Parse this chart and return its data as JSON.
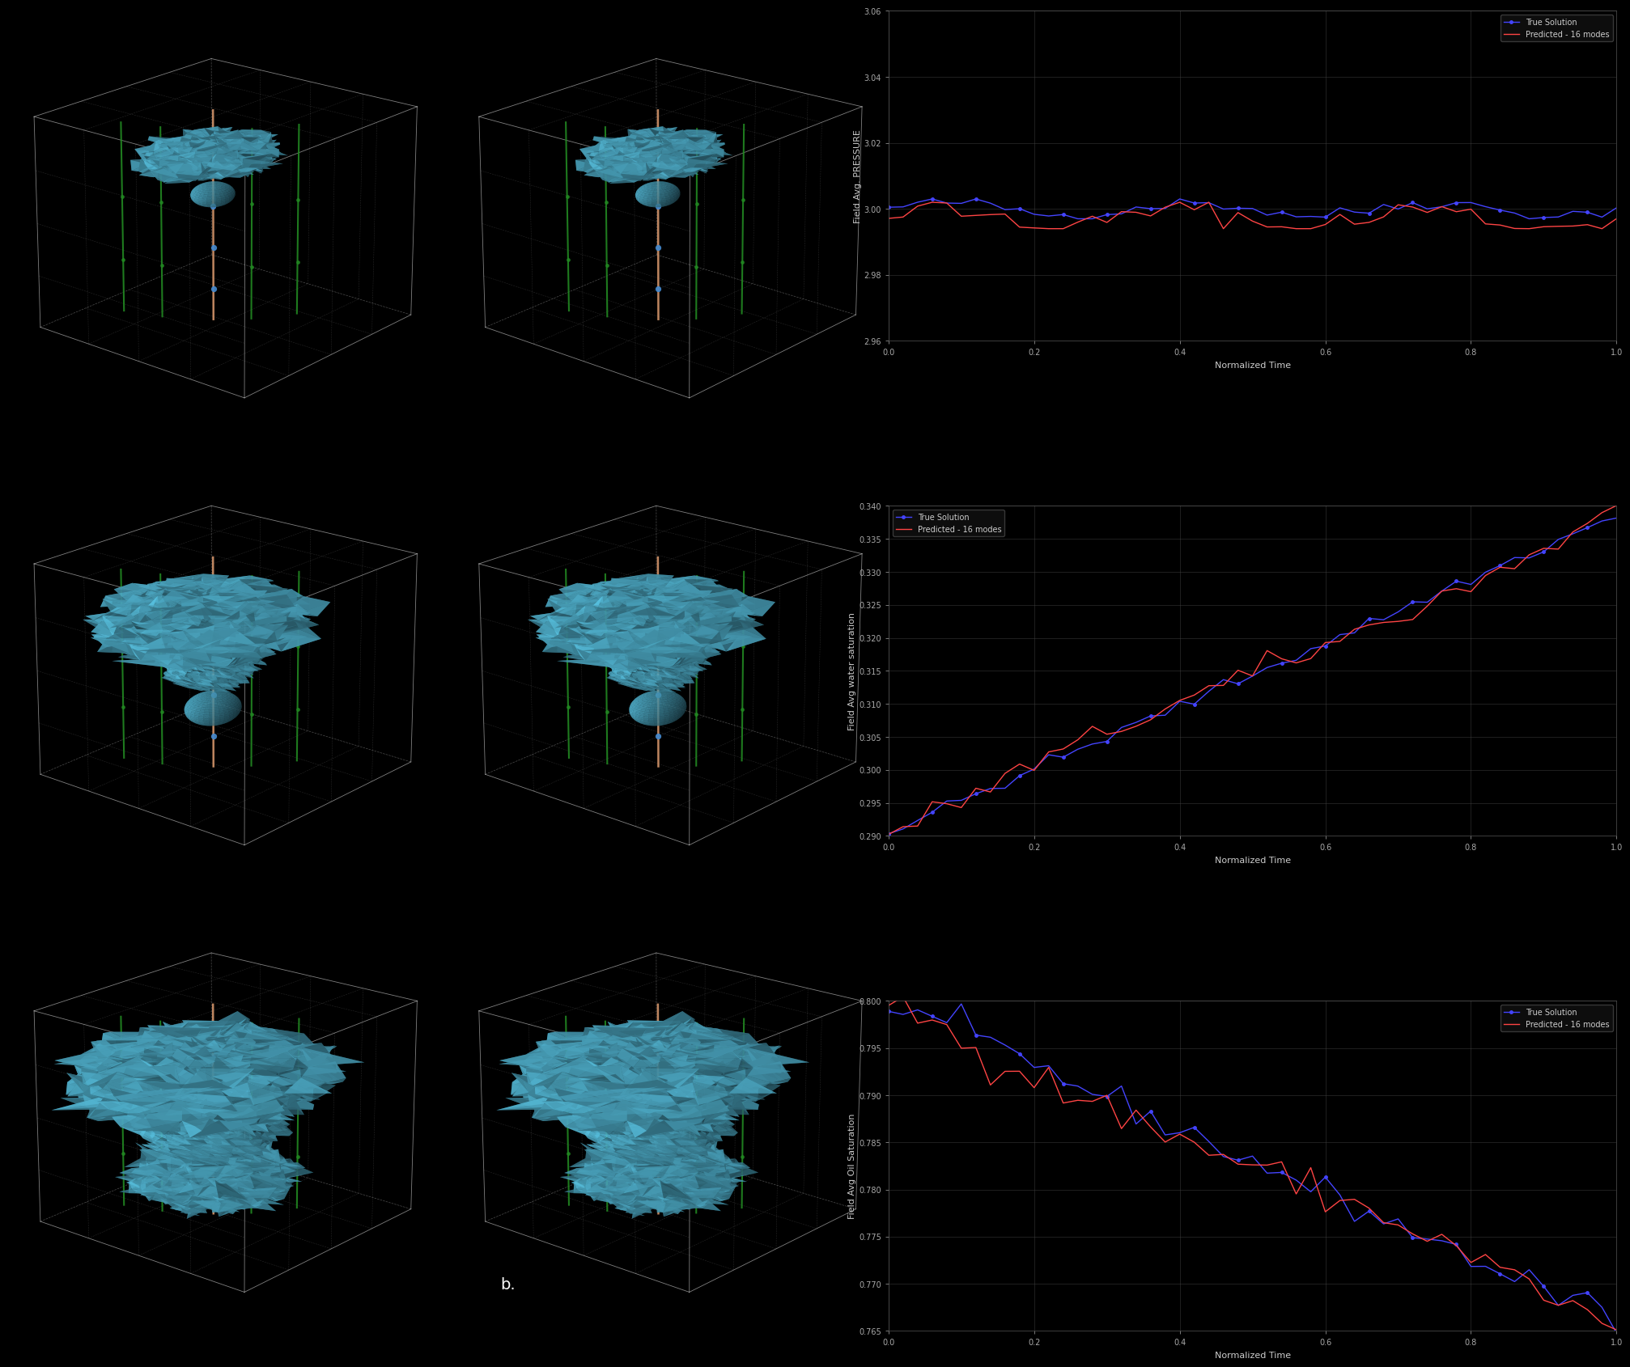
{
  "background_color": "#000000",
  "fig_width": 19.99,
  "fig_height": 16.32,
  "plots": {
    "pressure": {
      "xlabel": "Normalized Time",
      "ylabel": "Field Avg. PRESSURE",
      "ylim": [
        2.96,
        3.06
      ],
      "yticks": [
        2.96,
        2.98,
        3.0,
        3.02,
        3.04,
        3.06
      ],
      "xlim": [
        0.0,
        1.0
      ],
      "xticks": [
        0.0,
        0.2,
        0.4,
        0.6,
        0.8,
        1.0
      ],
      "legend": [
        "True Solution",
        "Predicted - 16 modes"
      ],
      "true_color": "#4444ff",
      "pred_color": "#ff4444"
    },
    "water_sat": {
      "xlabel": "Normalized Time",
      "ylabel": "Field Avg water saturation",
      "ylim": [
        0.29,
        0.34
      ],
      "yticks": [
        0.29,
        0.295,
        0.3,
        0.305,
        0.31,
        0.315,
        0.32,
        0.325,
        0.33,
        0.335,
        0.34
      ],
      "xlim": [
        0.0,
        1.0
      ],
      "xticks": [
        0.0,
        0.2,
        0.4,
        0.6,
        0.8,
        1.0
      ],
      "legend": [
        "True Solution",
        "Predicted - 16 modes"
      ],
      "true_color": "#4444ff",
      "pred_color": "#ff4444"
    },
    "oil_sat": {
      "xlabel": "Normalized Time",
      "ylabel": "Field Avg Oil Saturation",
      "ylim": [
        0.765,
        0.8
      ],
      "yticks": [
        0.765,
        0.77,
        0.775,
        0.78,
        0.785,
        0.79,
        0.795,
        0.8
      ],
      "xlim": [
        0.0,
        1.0
      ],
      "xticks": [
        0.0,
        0.2,
        0.4,
        0.6,
        0.8,
        1.0
      ],
      "legend": [
        "True Solution",
        "Predicted - 16 modes"
      ],
      "true_color": "#4444ff",
      "pred_color": "#ff4444"
    }
  },
  "label_b": "b.",
  "label_color": "#ffffff",
  "plot_bg": "#000000",
  "text_color": "#cccccc",
  "grid_color": "#444444",
  "tick_color": "#aaaaaa"
}
